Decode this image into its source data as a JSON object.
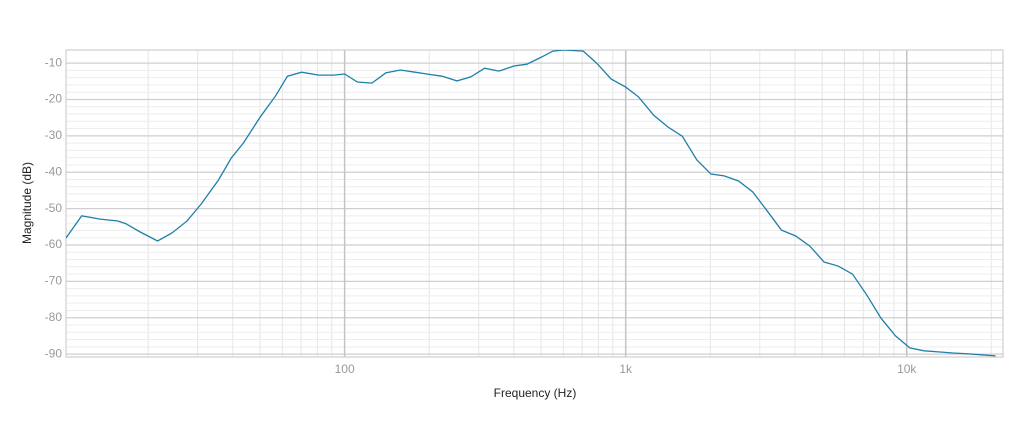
{
  "chart_data": {
    "type": "line",
    "x_label": "Frequency (Hz)",
    "y_label": "Magnitude (dB)",
    "xscale": "log",
    "grid": true,
    "color": "#1f7fa8",
    "xlim": [
      10.2,
      22000
    ],
    "ylim": [
      -90.8,
      -6.4
    ],
    "xticks": [
      100,
      {
        "value": 1000,
        "label": "1k"
      },
      {
        "value": 10000,
        "label": "10k"
      }
    ],
    "yticks": [
      -10,
      -20,
      -30,
      -40,
      -50,
      -60,
      -70,
      -80,
      -90
    ],
    "x": [
      10.2,
      11.6,
      13.5,
      15.6,
      16.7,
      18.7,
      21.6,
      24.3,
      27.5,
      30.9,
      35.6,
      39.5,
      43.6,
      50.1,
      56.7,
      62.6,
      70.3,
      80.8,
      91.4,
      100,
      111,
      125,
      140,
      158,
      178,
      196,
      222,
      251,
      281,
      315,
      354,
      400,
      445,
      500,
      551,
      603,
      706,
      788,
      888,
      1000,
      1111,
      1257,
      1415,
      1590,
      1790,
      2010,
      2240,
      2520,
      2830,
      3170,
      3580,
      4020,
      4520,
      5080,
      5700,
      6410,
      7200,
      8090,
      9120,
      10250,
      11520,
      12950,
      14600,
      16400,
      18400,
      20700
    ],
    "values": [
      -58.1,
      -52.0,
      -52.9,
      -53.4,
      -54.2,
      -56.4,
      -58.9,
      -56.7,
      -53.4,
      -48.7,
      -42.1,
      -36.1,
      -32.0,
      -24.8,
      -19.1,
      -13.6,
      -12.5,
      -13.3,
      -13.3,
      -13.0,
      -15.2,
      -15.5,
      -12.7,
      -11.9,
      -12.5,
      -13.0,
      -13.6,
      -14.9,
      -13.8,
      -11.4,
      -12.2,
      -10.8,
      -10.3,
      -8.4,
      -6.7,
      -6.4,
      -6.7,
      -10.0,
      -14.4,
      -16.6,
      -19.3,
      -24.3,
      -27.6,
      -30.1,
      -36.6,
      -40.5,
      -41.0,
      -42.4,
      -45.4,
      -50.4,
      -55.9,
      -57.5,
      -60.3,
      -64.7,
      -65.8,
      -68.0,
      -73.7,
      -80.1,
      -85.0,
      -88.3,
      -89.1,
      -89.4,
      -89.7,
      -89.9,
      -90.2,
      -90.5
    ]
  }
}
